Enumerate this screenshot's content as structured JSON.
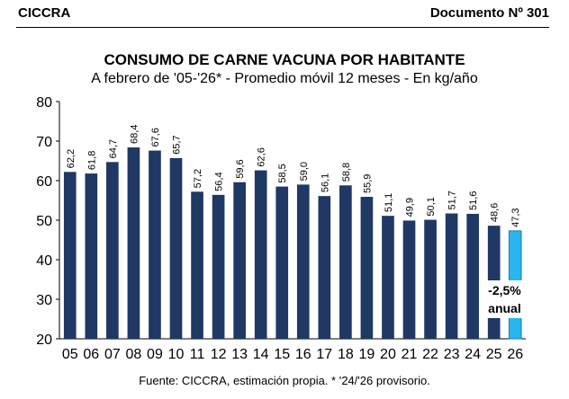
{
  "header": {
    "left": "CICCRA",
    "right": "Documento Nº 301"
  },
  "footer": "Fuente: CICCRA, estimación propia. * '24/'26 provisorio.",
  "colors": {
    "bar": "#1f3864",
    "highlight": "#2bb5ee"
  },
  "chart_data": {
    "type": "bar",
    "title": "CONSUMO DE CARNE VACUNA POR HABITANTE",
    "subtitle": "A febrero de '05-'26* - Promedio móvil 12 meses -  En kg/año",
    "categories": [
      "05",
      "06",
      "07",
      "08",
      "09",
      "10",
      "11",
      "12",
      "13",
      "14",
      "15",
      "16",
      "17",
      "18",
      "19",
      "20",
      "21",
      "22",
      "23",
      "24",
      "25",
      "26"
    ],
    "values": [
      62.2,
      61.8,
      64.7,
      68.4,
      67.6,
      65.7,
      57.2,
      56.4,
      59.6,
      62.6,
      58.5,
      59.0,
      56.1,
      58.8,
      55.9,
      51.1,
      49.9,
      50.1,
      51.7,
      51.6,
      48.6,
      47.3
    ],
    "value_labels": [
      "62,2",
      "61,8",
      "64,7",
      "68,4",
      "67,6",
      "65,7",
      "57,2",
      "56,4",
      "59,6",
      "62,6",
      "58,5",
      "59,0",
      "56,1",
      "58,8",
      "55,9",
      "51,1",
      "49,9",
      "50,1",
      "51,7",
      "51,6",
      "48,6",
      "47,3"
    ],
    "ylim": [
      20,
      80
    ],
    "yticks": [
      "20",
      "30",
      "40",
      "50",
      "60",
      "70",
      "80"
    ],
    "grid": false,
    "highlight_index": 21,
    "annotation": {
      "line1": "-2,5%",
      "line2": "anual"
    }
  }
}
